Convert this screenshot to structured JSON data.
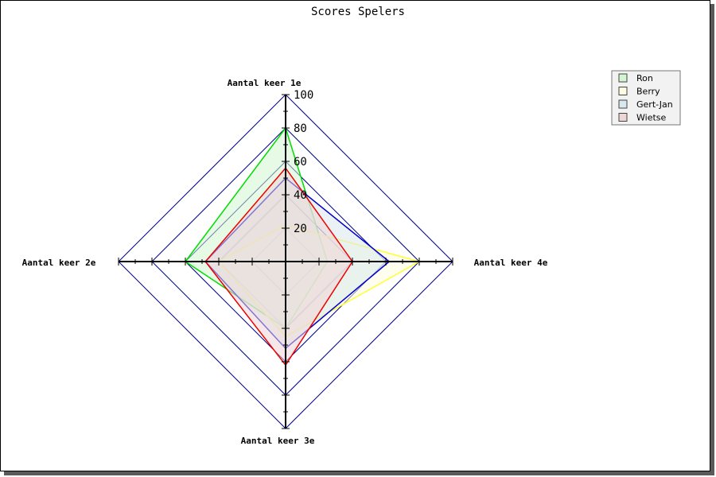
{
  "chart_data": {
    "type": "radar",
    "title": "Scores Spelers",
    "axes": [
      "Aantal keer 1e",
      "Aantal keer 4e",
      "Aantal keer 3e",
      "Aantal keer 2e"
    ],
    "range": [
      0,
      100
    ],
    "tick_labels": [
      "20",
      "40",
      "60",
      "80",
      "100"
    ],
    "grid": true,
    "legend_position": "top-right",
    "series": [
      {
        "name": "Ron",
        "values": [
          80,
          25,
          40,
          60
        ],
        "line": "#00dd00",
        "fill": "#d2f5d2"
      },
      {
        "name": "Berry",
        "values": [
          22,
          80,
          45,
          40
        ],
        "line": "#ffff33",
        "fill": "#fdfde0"
      },
      {
        "name": "Gert-Jan",
        "values": [
          50,
          62,
          52,
          48
        ],
        "line": "#0000cc",
        "fill": "#d8e8ef"
      },
      {
        "name": "Wietse",
        "values": [
          56,
          40,
          62,
          48
        ],
        "line": "#ee0000",
        "fill": "#efd6d6"
      }
    ]
  }
}
